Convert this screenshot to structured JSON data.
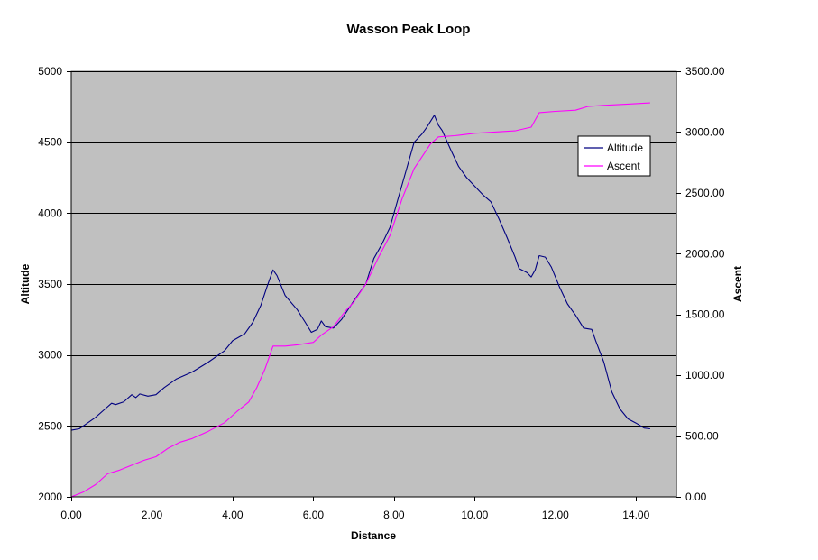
{
  "chart_data": {
    "type": "line",
    "title": "Wasson Peak Loop",
    "xlabel": "Distance",
    "ylabel": "Altitude",
    "y2label": "Ascent",
    "xlim": [
      0,
      15
    ],
    "ylim": [
      2000,
      5000
    ],
    "y2lim": [
      0,
      3500
    ],
    "x_ticks": [
      "0.00",
      "2.00",
      "4.00",
      "6.00",
      "8.00",
      "10.00",
      "12.00",
      "14.00"
    ],
    "y_ticks": [
      "2000",
      "2500",
      "3000",
      "3500",
      "4000",
      "4500",
      "5000"
    ],
    "y2_ticks": [
      "0.00",
      "500.00",
      "1000.00",
      "1500.00",
      "2000.00",
      "2500.00",
      "3000.00",
      "3500.00"
    ],
    "grid": "horizontal",
    "plot_background": "#c0c0c0",
    "legend_position": "right",
    "series": [
      {
        "name": "Altitude",
        "axis": "left",
        "color": "#000080",
        "points": [
          [
            0.0,
            2470
          ],
          [
            0.2,
            2480
          ],
          [
            0.4,
            2520
          ],
          [
            0.6,
            2560
          ],
          [
            0.8,
            2610
          ],
          [
            1.0,
            2660
          ],
          [
            1.1,
            2650
          ],
          [
            1.3,
            2670
          ],
          [
            1.5,
            2720
          ],
          [
            1.6,
            2700
          ],
          [
            1.7,
            2725
          ],
          [
            1.9,
            2710
          ],
          [
            2.1,
            2720
          ],
          [
            2.3,
            2770
          ],
          [
            2.6,
            2830
          ],
          [
            3.0,
            2880
          ],
          [
            3.4,
            2950
          ],
          [
            3.8,
            3030
          ],
          [
            4.0,
            3100
          ],
          [
            4.3,
            3150
          ],
          [
            4.5,
            3230
          ],
          [
            4.7,
            3350
          ],
          [
            4.85,
            3480
          ],
          [
            5.0,
            3600
          ],
          [
            5.1,
            3560
          ],
          [
            5.3,
            3420
          ],
          [
            5.6,
            3320
          ],
          [
            5.8,
            3230
          ],
          [
            5.95,
            3160
          ],
          [
            6.1,
            3180
          ],
          [
            6.2,
            3240
          ],
          [
            6.3,
            3200
          ],
          [
            6.5,
            3190
          ],
          [
            6.7,
            3250
          ],
          [
            7.0,
            3380
          ],
          [
            7.3,
            3500
          ],
          [
            7.5,
            3680
          ],
          [
            7.7,
            3780
          ],
          [
            7.9,
            3900
          ],
          [
            8.1,
            4100
          ],
          [
            8.3,
            4300
          ],
          [
            8.5,
            4500
          ],
          [
            8.7,
            4560
          ],
          [
            8.8,
            4600
          ],
          [
            9.0,
            4690
          ],
          [
            9.1,
            4620
          ],
          [
            9.2,
            4580
          ],
          [
            9.4,
            4450
          ],
          [
            9.6,
            4330
          ],
          [
            9.8,
            4250
          ],
          [
            10.0,
            4190
          ],
          [
            10.2,
            4130
          ],
          [
            10.4,
            4080
          ],
          [
            10.6,
            3960
          ],
          [
            10.8,
            3830
          ],
          [
            11.0,
            3690
          ],
          [
            11.1,
            3610
          ],
          [
            11.3,
            3580
          ],
          [
            11.4,
            3550
          ],
          [
            11.5,
            3600
          ],
          [
            11.6,
            3700
          ],
          [
            11.75,
            3690
          ],
          [
            11.9,
            3620
          ],
          [
            12.1,
            3480
          ],
          [
            12.3,
            3360
          ],
          [
            12.5,
            3280
          ],
          [
            12.7,
            3190
          ],
          [
            12.9,
            3180
          ],
          [
            13.0,
            3100
          ],
          [
            13.2,
            2950
          ],
          [
            13.4,
            2740
          ],
          [
            13.6,
            2620
          ],
          [
            13.8,
            2550
          ],
          [
            14.0,
            2520
          ],
          [
            14.2,
            2485
          ],
          [
            14.35,
            2480
          ]
        ]
      },
      {
        "name": "Ascent",
        "axis": "right",
        "color": "#ff00ff",
        "points": [
          [
            0.0,
            0
          ],
          [
            0.3,
            40
          ],
          [
            0.6,
            100
          ],
          [
            0.9,
            190
          ],
          [
            1.2,
            220
          ],
          [
            1.5,
            260
          ],
          [
            1.8,
            300
          ],
          [
            2.1,
            330
          ],
          [
            2.4,
            400
          ],
          [
            2.7,
            450
          ],
          [
            3.0,
            480
          ],
          [
            3.4,
            540
          ],
          [
            3.8,
            610
          ],
          [
            4.1,
            700
          ],
          [
            4.4,
            780
          ],
          [
            4.6,
            900
          ],
          [
            4.8,
            1050
          ],
          [
            5.0,
            1240
          ],
          [
            5.3,
            1240
          ],
          [
            5.6,
            1250
          ],
          [
            6.0,
            1270
          ],
          [
            6.2,
            1330
          ],
          [
            6.5,
            1400
          ],
          [
            6.8,
            1530
          ],
          [
            7.0,
            1600
          ],
          [
            7.3,
            1750
          ],
          [
            7.6,
            1960
          ],
          [
            7.9,
            2150
          ],
          [
            8.2,
            2450
          ],
          [
            8.5,
            2700
          ],
          [
            8.7,
            2800
          ],
          [
            8.9,
            2900
          ],
          [
            9.1,
            2960
          ],
          [
            9.5,
            2970
          ],
          [
            10.0,
            2990
          ],
          [
            10.5,
            3000
          ],
          [
            11.0,
            3010
          ],
          [
            11.4,
            3040
          ],
          [
            11.6,
            3160
          ],
          [
            12.0,
            3170
          ],
          [
            12.5,
            3180
          ],
          [
            12.8,
            3210
          ],
          [
            13.2,
            3220
          ],
          [
            13.8,
            3230
          ],
          [
            14.35,
            3240
          ]
        ]
      }
    ]
  }
}
